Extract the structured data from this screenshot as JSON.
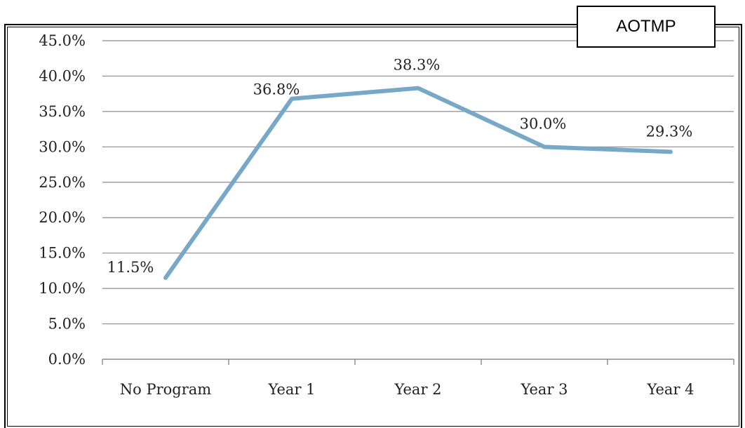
{
  "legend": {
    "text": "AOTMP"
  },
  "colors": {
    "line": "#78a8c8",
    "grid": "#8c8c8c",
    "axis": "#8c8c8c"
  },
  "chart_data": {
    "type": "line",
    "categories": [
      "No Program",
      "Year 1",
      "Year 2",
      "Year 3",
      "Year 4"
    ],
    "series": [
      {
        "values": [
          11.5,
          36.8,
          38.3,
          30.0,
          29.3
        ]
      }
    ],
    "data_labels": [
      "11.5%",
      "36.8%",
      "38.3%",
      "30.0%",
      "29.3%"
    ],
    "ylim": [
      0,
      45
    ],
    "yticks": [
      0,
      5,
      10,
      15,
      20,
      25,
      30,
      35,
      40,
      45
    ],
    "ytick_labels": [
      "0.0%",
      "5.0%",
      "10.0%",
      "15.0%",
      "20.0%",
      "25.0%",
      "30.0%",
      "35.0%",
      "40.0%",
      "45.0%"
    ],
    "grid": true,
    "legend_position": "top-right"
  }
}
